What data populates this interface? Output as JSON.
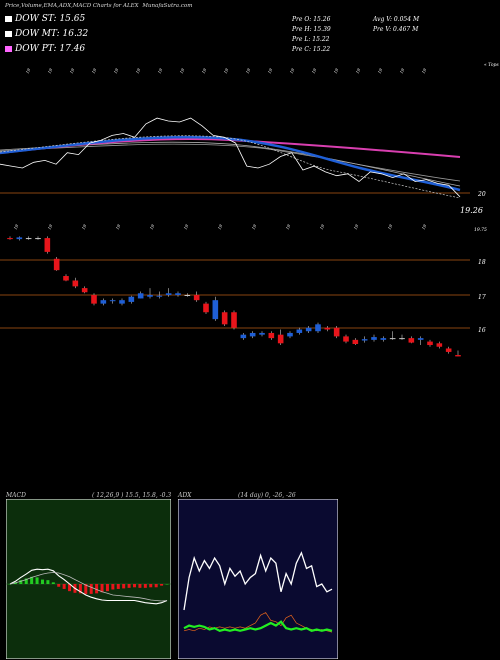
{
  "title": "Price,Volume,EMA,ADX,MACD Charts for ALEX",
  "site": "MunafaSutra.com",
  "dow": [
    {
      "label": "DOW ST: 15.65",
      "color": "#ffffff"
    },
    {
      "label": "DOW MT: 16.32",
      "color": "#ffffff"
    },
    {
      "label": "DOW PT: 17.46",
      "color": "#ff66ff"
    }
  ],
  "stats": {
    "open": "Pre O: 15.26",
    "high": "Pre H: 15.39",
    "low": "Pre L: 15.22",
    "close": "Pre C: 15.22",
    "avgvol": "Avg V: 0.054 M",
    "prevol": "Pre V: 0.467 M"
  },
  "colors": {
    "up": "#1f5fd6",
    "down": "#e8151b",
    "flat": "#c8c8c8",
    "ema_fast": "#1f5fd6",
    "ema_pt": "#d93fb0",
    "level_line": "#b45a14",
    "macd_bg": "#0c2e0c",
    "adx_bg": "#0a0a30"
  },
  "top_labels": [
    "19",
    "19",
    "19",
    "19",
    "19",
    "19",
    "19",
    "19",
    "19",
    "19",
    "19",
    "19",
    "19",
    "19",
    "19",
    "19",
    "19",
    "19",
    "19"
  ],
  "mid_labels": [
    "19",
    "19",
    "19",
    "19",
    "19",
    "19",
    "19",
    "19",
    "19",
    "19",
    "19",
    "19",
    "19"
  ],
  "ema_panel": {
    "corner": "« Tops",
    "level_label": "20",
    "last_price": "19.26"
  },
  "candle_panel": {
    "corner": "19.75",
    "axis_ticks": [
      "18",
      "17",
      "16"
    ]
  },
  "chart_data": [
    {
      "type": "line",
      "name": "ema-panel",
      "yticks": [
        "20"
      ],
      "series": [
        {
          "name": "price",
          "values": [
            20.3,
            20.28,
            20.26,
            20.32,
            20.34,
            20.3,
            20.42,
            20.4,
            20.52,
            20.55,
            20.6,
            20.62,
            20.58,
            20.72,
            20.78,
            20.75,
            20.74,
            20.78,
            20.7,
            20.6,
            20.58,
            20.52,
            20.28,
            20.26,
            20.3,
            20.38,
            20.42,
            20.24,
            20.28,
            20.22,
            20.18,
            20.2,
            20.12,
            20.22,
            20.2,
            20.16,
            20.2,
            20.12,
            20.14,
            20.1,
            20.08,
            19.96
          ]
        }
      ]
    },
    {
      "type": "candlestick",
      "name": "price-panel",
      "yticks": [
        "18",
        "17",
        "16"
      ],
      "candles": [
        {
          "o": 18.65,
          "h": 18.7,
          "l": 18.6,
          "c": 18.62
        },
        {
          "o": 18.62,
          "h": 18.7,
          "l": 18.58,
          "c": 18.67
        },
        {
          "o": 18.65,
          "h": 18.7,
          "l": 18.6,
          "c": 18.65
        },
        {
          "o": 18.65,
          "h": 18.7,
          "l": 18.6,
          "c": 18.65
        },
        {
          "o": 18.65,
          "h": 18.7,
          "l": 18.2,
          "c": 18.25
        },
        {
          "o": 18.05,
          "h": 18.1,
          "l": 17.7,
          "c": 17.72
        },
        {
          "o": 17.55,
          "h": 17.6,
          "l": 17.4,
          "c": 17.42
        },
        {
          "o": 17.42,
          "h": 17.5,
          "l": 17.2,
          "c": 17.25
        },
        {
          "o": 17.2,
          "h": 17.25,
          "l": 17.05,
          "c": 17.08
        },
        {
          "o": 17.0,
          "h": 17.05,
          "l": 16.7,
          "c": 16.75
        },
        {
          "o": 16.75,
          "h": 16.9,
          "l": 16.7,
          "c": 16.85
        },
        {
          "o": 16.82,
          "h": 16.9,
          "l": 16.75,
          "c": 16.85
        },
        {
          "o": 16.75,
          "h": 16.9,
          "l": 16.7,
          "c": 16.85
        },
        {
          "o": 16.8,
          "h": 16.98,
          "l": 16.75,
          "c": 16.95
        },
        {
          "o": 16.9,
          "h": 17.1,
          "l": 16.9,
          "c": 17.05
        },
        {
          "o": 16.95,
          "h": 17.2,
          "l": 16.9,
          "c": 17.0
        },
        {
          "o": 16.95,
          "h": 17.1,
          "l": 16.9,
          "c": 16.98
        },
        {
          "o": 17.0,
          "h": 17.2,
          "l": 16.95,
          "c": 17.05
        },
        {
          "o": 17.0,
          "h": 17.1,
          "l": 16.95,
          "c": 17.05
        },
        {
          "o": 17.0,
          "h": 17.05,
          "l": 16.95,
          "c": 17.0
        },
        {
          "o": 17.0,
          "h": 17.1,
          "l": 16.8,
          "c": 16.85
        },
        {
          "o": 16.75,
          "h": 16.8,
          "l": 16.45,
          "c": 16.5
        },
        {
          "o": 16.3,
          "h": 16.95,
          "l": 16.25,
          "c": 16.85
        },
        {
          "o": 16.5,
          "h": 16.55,
          "l": 16.1,
          "c": 16.15
        },
        {
          "o": 16.5,
          "h": 16.55,
          "l": 16.0,
          "c": 16.05
        },
        {
          "o": 15.75,
          "h": 15.9,
          "l": 15.7,
          "c": 15.85
        },
        {
          "o": 15.8,
          "h": 15.95,
          "l": 15.75,
          "c": 15.9
        },
        {
          "o": 15.85,
          "h": 15.95,
          "l": 15.8,
          "c": 15.9
        },
        {
          "o": 15.9,
          "h": 15.95,
          "l": 15.7,
          "c": 15.75
        },
        {
          "o": 15.85,
          "h": 16.0,
          "l": 15.55,
          "c": 15.6
        },
        {
          "o": 15.8,
          "h": 15.95,
          "l": 15.75,
          "c": 15.9
        },
        {
          "o": 15.9,
          "h": 16.05,
          "l": 15.85,
          "c": 16.0
        },
        {
          "o": 15.95,
          "h": 16.1,
          "l": 15.9,
          "c": 16.05
        },
        {
          "o": 15.95,
          "h": 16.2,
          "l": 15.9,
          "c": 16.15
        },
        {
          "o": 16.05,
          "h": 16.1,
          "l": 15.95,
          "c": 16.0
        },
        {
          "o": 16.05,
          "h": 16.1,
          "l": 15.75,
          "c": 15.8
        },
        {
          "o": 15.8,
          "h": 15.85,
          "l": 15.6,
          "c": 15.65
        },
        {
          "o": 15.7,
          "h": 15.75,
          "l": 15.55,
          "c": 15.58
        },
        {
          "o": 15.68,
          "h": 15.8,
          "l": 15.62,
          "c": 15.72
        },
        {
          "o": 15.7,
          "h": 15.85,
          "l": 15.65,
          "c": 15.78
        },
        {
          "o": 15.7,
          "h": 15.8,
          "l": 15.65,
          "c": 15.75
        },
        {
          "o": 15.75,
          "h": 15.95,
          "l": 15.7,
          "c": 15.75
        },
        {
          "o": 15.75,
          "h": 15.85,
          "l": 15.7,
          "c": 15.75
        },
        {
          "o": 15.75,
          "h": 15.8,
          "l": 15.6,
          "c": 15.62
        },
        {
          "o": 15.7,
          "h": 15.8,
          "l": 15.55,
          "c": 15.75
        },
        {
          "o": 15.65,
          "h": 15.7,
          "l": 15.5,
          "c": 15.55
        },
        {
          "o": 15.6,
          "h": 15.65,
          "l": 15.45,
          "c": 15.5
        },
        {
          "o": 15.45,
          "h": 15.5,
          "l": 15.3,
          "c": 15.35
        },
        {
          "o": 15.26,
          "h": 15.39,
          "l": 15.22,
          "c": 15.22
        }
      ]
    },
    {
      "type": "bar",
      "name": "macd-panel",
      "label": "MACD",
      "params": "( 12,26,9 ) 15.5,  15.8,  -0.3",
      "series": [
        {
          "name": "macd-line",
          "values": [
            0.0,
            0.05,
            0.12,
            0.18,
            0.25,
            0.27,
            0.26,
            0.27,
            0.24,
            0.15,
            0.08,
            0.0,
            -0.08,
            -0.14,
            -0.2,
            -0.24,
            -0.27,
            -0.29,
            -0.3,
            -0.3,
            -0.3,
            -0.3,
            -0.3,
            -0.3,
            -0.32,
            -0.34,
            -0.35,
            -0.36,
            -0.34,
            -0.3
          ]
        },
        {
          "name": "signal-line",
          "values": [
            0.0,
            0.02,
            0.05,
            0.08,
            0.12,
            0.15,
            0.18,
            0.2,
            0.21,
            0.2,
            0.17,
            0.13,
            0.08,
            0.03,
            -0.02,
            -0.06,
            -0.1,
            -0.14,
            -0.17,
            -0.2,
            -0.21,
            -0.22,
            -0.23,
            -0.24,
            -0.25,
            -0.27,
            -0.29,
            -0.3,
            -0.31,
            -0.3
          ]
        },
        {
          "name": "histogram",
          "values": [
            0.0,
            0.03,
            0.07,
            0.1,
            0.13,
            0.12,
            0.08,
            0.07,
            0.03,
            -0.05,
            -0.09,
            -0.13,
            -0.16,
            -0.17,
            -0.18,
            -0.18,
            -0.17,
            -0.15,
            -0.13,
            -0.1,
            -0.09,
            -0.08,
            -0.07,
            -0.06,
            -0.07,
            -0.07,
            -0.06,
            -0.06,
            -0.03,
            0.0
          ]
        }
      ]
    },
    {
      "type": "line",
      "name": "adx-panel",
      "label": "ADX",
      "params": "(14 day) 0,  -26,  -26",
      "series": [
        {
          "name": "adx",
          "values": [
            30,
            55,
            70,
            60,
            68,
            62,
            70,
            64,
            50,
            62,
            56,
            60,
            50,
            55,
            58,
            72,
            60,
            70,
            66,
            44,
            58,
            50,
            66,
            74,
            62,
            64,
            48,
            50,
            44,
            46
          ]
        },
        {
          "name": "plus-di",
          "values": [
            16,
            18,
            17,
            18,
            17,
            15,
            16,
            14,
            15,
            14,
            15,
            14,
            15,
            16,
            15,
            16,
            18,
            20,
            18,
            21,
            16,
            15,
            16,
            15,
            16,
            14,
            15,
            14,
            15,
            14
          ]
        },
        {
          "name": "minus-di",
          "values": [
            14,
            15,
            14,
            16,
            15,
            17,
            16,
            17,
            16,
            17,
            16,
            17,
            16,
            18,
            20,
            26,
            28,
            22,
            21,
            18,
            24,
            26,
            20,
            18,
            16,
            15,
            14,
            15,
            14,
            13
          ]
        }
      ]
    }
  ]
}
